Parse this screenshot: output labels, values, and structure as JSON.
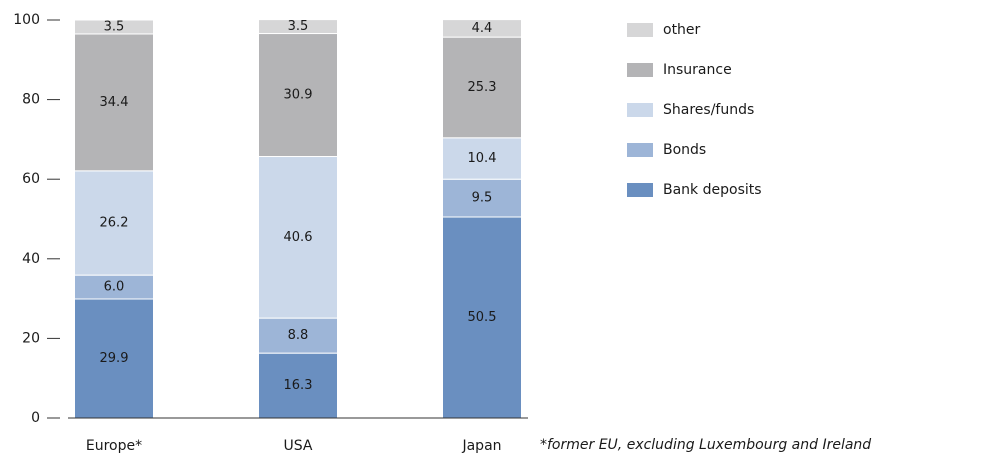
{
  "chart_data": {
    "type": "stacked_bar",
    "categories": [
      "Europe*",
      "USA",
      "Japan"
    ],
    "series": [
      {
        "name": "Bank deposits",
        "color": "#6a8fc0",
        "values": [
          29.9,
          16.3,
          50.5
        ]
      },
      {
        "name": "Bonds",
        "color": "#9db5d7",
        "values": [
          6,
          8.8,
          9.5
        ],
        "value_labels": [
          "6.0",
          "8.8",
          "9.5"
        ]
      },
      {
        "name": "Shares/funds",
        "color": "#cbd8ea",
        "values": [
          26.2,
          40.6,
          10.4
        ]
      },
      {
        "name": "Insurance",
        "color": "#b4b4b6",
        "values": [
          34.4,
          30.9,
          25.3
        ]
      },
      {
        "name": "other",
        "color": "#d6d6d7",
        "values": [
          3.5,
          3.5,
          4.4
        ]
      }
    ],
    "ylim": [
      0,
      100
    ],
    "yticks": [
      0,
      20,
      40,
      60,
      80,
      100
    ],
    "annotation": "*former EU, excluding Luxembourg and Ireland"
  }
}
